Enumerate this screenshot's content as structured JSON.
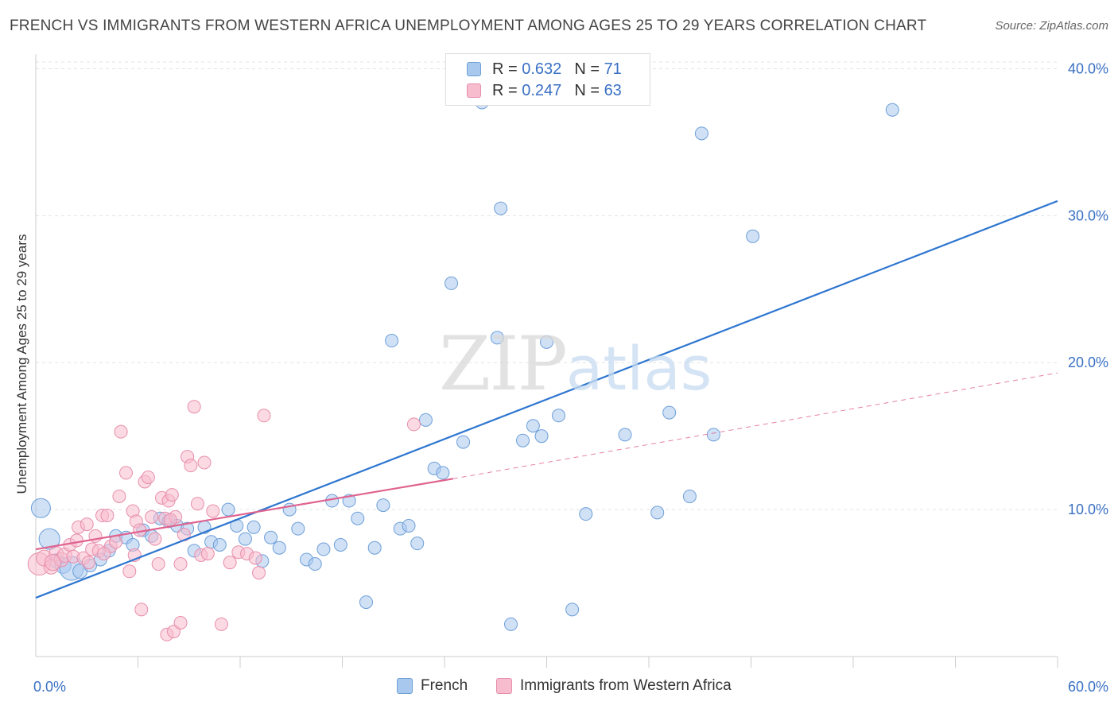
{
  "title": "FRENCH VS IMMIGRANTS FROM WESTERN AFRICA UNEMPLOYMENT AMONG AGES 25 TO 29 YEARS CORRELATION CHART",
  "source": "Source: ZipAtlas.com",
  "watermark": {
    "zip": "ZIP",
    "atlas": "atlas"
  },
  "legend_top": [
    {
      "r_label": "R =",
      "r_value": "0.632",
      "n_label": "N =",
      "n_value": "71"
    },
    {
      "r_label": "R =",
      "r_value": "0.247",
      "n_label": "N =",
      "n_value": "63"
    }
  ],
  "colors": {
    "french_fill": "#a9c8ee",
    "french_stroke": "#6d9fd8",
    "french_line": "#2e76d0",
    "wa_fill": "#f7bccd",
    "wa_stroke": "#e88eab",
    "wa_line": "#e0628f",
    "grid": "#e3e3e3",
    "tick_label": "#3a70c4"
  },
  "chart_data": {
    "type": "scatter",
    "title": "FRENCH VS IMMIGRANTS FROM WESTERN AFRICA UNEMPLOYMENT AMONG AGES 25 TO 29 YEARS CORRELATION CHART",
    "xlabel": "",
    "ylabel": "Unemployment Among Ages 25 to 29 years",
    "xlim": [
      0,
      60
    ],
    "ylim": [
      0,
      41
    ],
    "x_tick_labels": [
      {
        "value": 0,
        "label": "0.0%"
      },
      {
        "value": 60,
        "label": "60.0%"
      }
    ],
    "y_tick_labels": [
      {
        "value": 10,
        "label": "10.0%"
      },
      {
        "value": 20,
        "label": "20.0%"
      },
      {
        "value": 30,
        "label": "30.0%"
      },
      {
        "value": 40,
        "label": "40.0%"
      }
    ],
    "x_minor_ticks": [
      6,
      12,
      18,
      24,
      30,
      36,
      42,
      48,
      54,
      60
    ],
    "grid": true,
    "legend_position": "bottom",
    "series": [
      {
        "name": "French",
        "R": 0.632,
        "N": 71,
        "trend": {
          "x": [
            0,
            60
          ],
          "y": [
            4.0,
            31.0
          ]
        },
        "points": [
          {
            "x": 0.3,
            "y": 10.1,
            "s": 12
          },
          {
            "x": 0.8,
            "y": 8.0,
            "s": 13
          },
          {
            "x": 1.2,
            "y": 6.5,
            "s": 9
          },
          {
            "x": 1.6,
            "y": 6.2,
            "s": 10
          },
          {
            "x": 2.1,
            "y": 6.0,
            "s": 15
          },
          {
            "x": 2.6,
            "y": 5.8,
            "s": 9
          },
          {
            "x": 3.2,
            "y": 6.2,
            "s": 8
          },
          {
            "x": 3.8,
            "y": 6.6,
            "s": 8
          },
          {
            "x": 4.3,
            "y": 7.2,
            "s": 8
          },
          {
            "x": 4.7,
            "y": 8.2,
            "s": 8
          },
          {
            "x": 5.3,
            "y": 8.1,
            "s": 8
          },
          {
            "x": 5.7,
            "y": 7.6,
            "s": 8
          },
          {
            "x": 6.3,
            "y": 8.6,
            "s": 8
          },
          {
            "x": 6.8,
            "y": 8.2,
            "s": 8
          },
          {
            "x": 7.3,
            "y": 9.4,
            "s": 8
          },
          {
            "x": 7.8,
            "y": 9.2,
            "s": 8
          },
          {
            "x": 8.3,
            "y": 8.9,
            "s": 8
          },
          {
            "x": 8.9,
            "y": 8.7,
            "s": 8
          },
          {
            "x": 9.3,
            "y": 7.2,
            "s": 8
          },
          {
            "x": 9.9,
            "y": 8.8,
            "s": 8
          },
          {
            "x": 10.3,
            "y": 7.8,
            "s": 8
          },
          {
            "x": 10.8,
            "y": 7.6,
            "s": 8
          },
          {
            "x": 11.3,
            "y": 10.0,
            "s": 8
          },
          {
            "x": 11.8,
            "y": 8.9,
            "s": 8
          },
          {
            "x": 12.3,
            "y": 8.0,
            "s": 8
          },
          {
            "x": 12.8,
            "y": 8.8,
            "s": 8
          },
          {
            "x": 13.3,
            "y": 6.5,
            "s": 8
          },
          {
            "x": 13.8,
            "y": 8.1,
            "s": 8
          },
          {
            "x": 14.3,
            "y": 7.4,
            "s": 8
          },
          {
            "x": 14.9,
            "y": 10.0,
            "s": 8
          },
          {
            "x": 15.4,
            "y": 8.7,
            "s": 8
          },
          {
            "x": 15.9,
            "y": 6.6,
            "s": 8
          },
          {
            "x": 16.4,
            "y": 6.3,
            "s": 8
          },
          {
            "x": 16.9,
            "y": 7.3,
            "s": 8
          },
          {
            "x": 17.4,
            "y": 10.6,
            "s": 8
          },
          {
            "x": 17.9,
            "y": 7.6,
            "s": 8
          },
          {
            "x": 18.4,
            "y": 10.6,
            "s": 8
          },
          {
            "x": 18.9,
            "y": 9.4,
            "s": 8
          },
          {
            "x": 19.4,
            "y": 3.7,
            "s": 8
          },
          {
            "x": 19.9,
            "y": 7.4,
            "s": 8
          },
          {
            "x": 20.4,
            "y": 10.3,
            "s": 8
          },
          {
            "x": 20.9,
            "y": 21.5,
            "s": 8
          },
          {
            "x": 21.4,
            "y": 8.7,
            "s": 8
          },
          {
            "x": 21.9,
            "y": 8.9,
            "s": 8
          },
          {
            "x": 22.4,
            "y": 7.7,
            "s": 8
          },
          {
            "x": 22.9,
            "y": 16.1,
            "s": 8
          },
          {
            "x": 23.4,
            "y": 12.8,
            "s": 8
          },
          {
            "x": 23.9,
            "y": 12.5,
            "s": 8
          },
          {
            "x": 24.4,
            "y": 25.4,
            "s": 8
          },
          {
            "x": 25.1,
            "y": 14.6,
            "s": 8
          },
          {
            "x": 25.7,
            "y": 38.5,
            "s": 8
          },
          {
            "x": 26.2,
            "y": 37.7,
            "s": 8
          },
          {
            "x": 27.1,
            "y": 21.7,
            "s": 8
          },
          {
            "x": 27.3,
            "y": 30.5,
            "s": 8
          },
          {
            "x": 27.9,
            "y": 2.2,
            "s": 8
          },
          {
            "x": 28.6,
            "y": 14.7,
            "s": 8
          },
          {
            "x": 29.2,
            "y": 15.7,
            "s": 8
          },
          {
            "x": 29.7,
            "y": 15.0,
            "s": 8
          },
          {
            "x": 30.0,
            "y": 21.4,
            "s": 8
          },
          {
            "x": 30.7,
            "y": 16.4,
            "s": 8
          },
          {
            "x": 31.5,
            "y": 3.2,
            "s": 8
          },
          {
            "x": 32.3,
            "y": 9.7,
            "s": 8
          },
          {
            "x": 33.5,
            "y": 38.5,
            "s": 8
          },
          {
            "x": 34.6,
            "y": 15.1,
            "s": 8
          },
          {
            "x": 36.5,
            "y": 9.8,
            "s": 8
          },
          {
            "x": 37.2,
            "y": 16.6,
            "s": 8
          },
          {
            "x": 38.4,
            "y": 10.9,
            "s": 8
          },
          {
            "x": 39.1,
            "y": 35.6,
            "s": 8
          },
          {
            "x": 39.8,
            "y": 15.1,
            "s": 8
          },
          {
            "x": 42.1,
            "y": 28.6,
            "s": 8
          },
          {
            "x": 50.3,
            "y": 37.2,
            "s": 8
          }
        ]
      },
      {
        "name": "Immigrants from Western Africa",
        "R": 0.247,
        "N": 63,
        "trend": {
          "x": [
            0,
            24.5
          ],
          "y": [
            7.3,
            12.1
          ]
        },
        "trend_dashed": {
          "x": [
            24.5,
            60
          ],
          "y": [
            12.1,
            19.3
          ]
        },
        "points": [
          {
            "x": 0.2,
            "y": 6.3,
            "s": 14
          },
          {
            "x": 0.5,
            "y": 6.7,
            "s": 10
          },
          {
            "x": 0.9,
            "y": 6.1,
            "s": 9
          },
          {
            "x": 1.2,
            "y": 7.0,
            "s": 9
          },
          {
            "x": 1.5,
            "y": 6.6,
            "s": 9
          },
          {
            "x": 1.7,
            "y": 6.9,
            "s": 9
          },
          {
            "x": 2.0,
            "y": 7.6,
            "s": 8
          },
          {
            "x": 2.2,
            "y": 6.8,
            "s": 8
          },
          {
            "x": 2.5,
            "y": 8.8,
            "s": 8
          },
          {
            "x": 2.8,
            "y": 6.7,
            "s": 8
          },
          {
            "x": 3.0,
            "y": 9.0,
            "s": 8
          },
          {
            "x": 3.3,
            "y": 7.3,
            "s": 8
          },
          {
            "x": 3.5,
            "y": 8.2,
            "s": 8
          },
          {
            "x": 3.7,
            "y": 7.2,
            "s": 8
          },
          {
            "x": 3.9,
            "y": 9.6,
            "s": 8
          },
          {
            "x": 4.2,
            "y": 9.6,
            "s": 8
          },
          {
            "x": 4.4,
            "y": 7.5,
            "s": 8
          },
          {
            "x": 4.7,
            "y": 7.8,
            "s": 8
          },
          {
            "x": 4.9,
            "y": 10.9,
            "s": 8
          },
          {
            "x": 5.0,
            "y": 15.3,
            "s": 8
          },
          {
            "x": 5.3,
            "y": 12.5,
            "s": 8
          },
          {
            "x": 5.5,
            "y": 5.8,
            "s": 8
          },
          {
            "x": 5.7,
            "y": 9.9,
            "s": 8
          },
          {
            "x": 5.9,
            "y": 9.2,
            "s": 8
          },
          {
            "x": 6.1,
            "y": 8.6,
            "s": 8
          },
          {
            "x": 6.4,
            "y": 11.9,
            "s": 8
          },
          {
            "x": 6.6,
            "y": 12.2,
            "s": 8
          },
          {
            "x": 6.8,
            "y": 9.5,
            "s": 8
          },
          {
            "x": 7.0,
            "y": 8.0,
            "s": 8
          },
          {
            "x": 7.2,
            "y": 6.3,
            "s": 8
          },
          {
            "x": 7.4,
            "y": 10.8,
            "s": 8
          },
          {
            "x": 7.6,
            "y": 9.4,
            "s": 8
          },
          {
            "x": 7.8,
            "y": 10.6,
            "s": 8
          },
          {
            "x": 8.0,
            "y": 11.0,
            "s": 8
          },
          {
            "x": 8.2,
            "y": 9.5,
            "s": 8
          },
          {
            "x": 8.5,
            "y": 6.3,
            "s": 8
          },
          {
            "x": 8.7,
            "y": 8.3,
            "s": 8
          },
          {
            "x": 8.9,
            "y": 13.6,
            "s": 8
          },
          {
            "x": 9.1,
            "y": 13.0,
            "s": 8
          },
          {
            "x": 9.3,
            "y": 17.0,
            "s": 8
          },
          {
            "x": 9.5,
            "y": 10.4,
            "s": 8
          },
          {
            "x": 9.7,
            "y": 6.9,
            "s": 8
          },
          {
            "x": 9.9,
            "y": 13.2,
            "s": 8
          },
          {
            "x": 10.1,
            "y": 7.0,
            "s": 8
          },
          {
            "x": 10.4,
            "y": 9.9,
            "s": 8
          },
          {
            "x": 10.9,
            "y": 2.2,
            "s": 8
          },
          {
            "x": 11.4,
            "y": 6.4,
            "s": 8
          },
          {
            "x": 11.9,
            "y": 7.1,
            "s": 8
          },
          {
            "x": 12.4,
            "y": 7.0,
            "s": 8
          },
          {
            "x": 12.9,
            "y": 6.7,
            "s": 8
          },
          {
            "x": 13.1,
            "y": 5.7,
            "s": 8
          },
          {
            "x": 13.4,
            "y": 16.4,
            "s": 8
          },
          {
            "x": 7.7,
            "y": 1.5,
            "s": 8
          },
          {
            "x": 8.1,
            "y": 1.7,
            "s": 8
          },
          {
            "x": 8.5,
            "y": 2.3,
            "s": 8
          },
          {
            "x": 6.2,
            "y": 3.2,
            "s": 8
          },
          {
            "x": 22.2,
            "y": 15.8,
            "s": 8
          },
          {
            "x": 4.0,
            "y": 7.0,
            "s": 8
          },
          {
            "x": 3.1,
            "y": 6.4,
            "s": 8
          },
          {
            "x": 2.4,
            "y": 7.9,
            "s": 8
          },
          {
            "x": 1.0,
            "y": 6.4,
            "s": 10
          },
          {
            "x": 5.8,
            "y": 6.9,
            "s": 8
          },
          {
            "x": 7.9,
            "y": 9.3,
            "s": 8
          }
        ]
      }
    ],
    "legend_bottom": [
      "French",
      "Immigrants from Western Africa"
    ]
  }
}
